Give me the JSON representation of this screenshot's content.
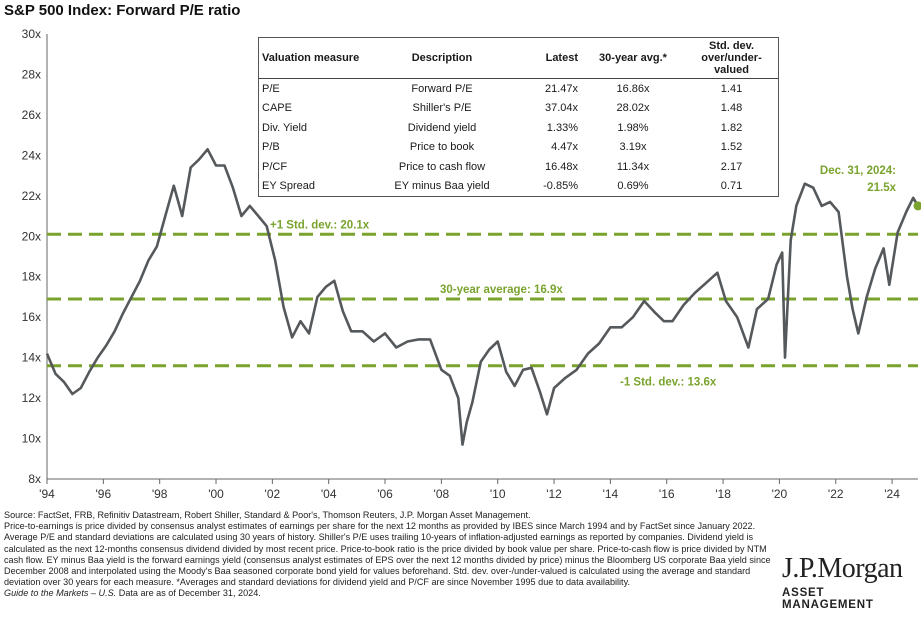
{
  "title": "S&P 500 Index: Forward P/E ratio",
  "colors": {
    "line": "#55595c",
    "accent": "#7aa32e",
    "grid": "#b3b3b3"
  },
  "chart_data": {
    "type": "line",
    "title": "S&P 500 Index: Forward P/E ratio",
    "xlabel": "",
    "ylabel": "",
    "xlim": [
      1994,
      2024.92
    ],
    "ylim": [
      8,
      30
    ],
    "y_ticks": [
      8,
      10,
      12,
      14,
      16,
      18,
      20,
      22,
      24,
      26,
      28,
      30
    ],
    "y_tick_labels": [
      "8x",
      "10x",
      "12x",
      "14x",
      "16x",
      "18x",
      "20x",
      "22x",
      "24x",
      "26x",
      "28x",
      "30x"
    ],
    "x_ticks": [
      1994,
      1996,
      1998,
      2000,
      2002,
      2004,
      2006,
      2008,
      2010,
      2012,
      2014,
      2016,
      2018,
      2020,
      2022,
      2024
    ],
    "x_tick_labels": [
      "'94",
      "'96",
      "'98",
      "'00",
      "'02",
      "'04",
      "'06",
      "'08",
      "'10",
      "'12",
      "'14",
      "'16",
      "'18",
      "'20",
      "'22",
      "'24"
    ],
    "grid": "none",
    "series": [
      {
        "x": [
          1994.0,
          1994.3,
          1994.6,
          1994.9,
          1995.2,
          1995.5,
          1995.8,
          1996.1,
          1996.4,
          1996.7,
          1997.0,
          1997.3,
          1997.6,
          1997.9,
          1998.2,
          1998.5,
          1998.8,
          1999.1,
          1999.4,
          1999.7,
          2000.0,
          2000.3,
          2000.6,
          2000.9,
          2001.2,
          2001.5,
          2001.8,
          2002.1,
          2002.4,
          2002.7,
          2003.0,
          2003.3,
          2003.6,
          2003.9,
          2004.2,
          2004.5,
          2004.8,
          2005.2,
          2005.6,
          2006.0,
          2006.4,
          2006.8,
          2007.2,
          2007.6,
          2008.0,
          2008.3,
          2008.6,
          2008.75,
          2008.9,
          2009.1,
          2009.4,
          2009.7,
          2010.0,
          2010.3,
          2010.6,
          2010.9,
          2011.2,
          2011.5,
          2011.75,
          2012.0,
          2012.4,
          2012.8,
          2013.2,
          2013.6,
          2014.0,
          2014.4,
          2014.8,
          2015.2,
          2015.6,
          2015.9,
          2016.2,
          2016.6,
          2017.0,
          2017.4,
          2017.8,
          2018.1,
          2018.5,
          2018.9,
          2019.2,
          2019.6,
          2019.9,
          2020.1,
          2020.2,
          2020.4,
          2020.6,
          2020.9,
          2021.2,
          2021.5,
          2021.8,
          2022.1,
          2022.4,
          2022.6,
          2022.8,
          2023.1,
          2023.4,
          2023.7,
          2023.9,
          2024.2,
          2024.5,
          2024.75,
          2024.92
        ],
        "values": [
          14.2,
          13.2,
          12.8,
          12.2,
          12.5,
          13.3,
          14.0,
          14.6,
          15.3,
          16.2,
          17.0,
          17.8,
          18.8,
          19.5,
          21.0,
          22.5,
          21.0,
          23.4,
          23.8,
          24.3,
          23.5,
          23.5,
          22.4,
          21.0,
          21.5,
          21.0,
          20.5,
          18.8,
          16.5,
          15.0,
          15.8,
          15.2,
          17.0,
          17.5,
          17.8,
          16.3,
          15.3,
          15.3,
          14.8,
          15.2,
          14.5,
          14.8,
          14.9,
          14.9,
          13.4,
          13.1,
          12.0,
          9.7,
          10.8,
          11.8,
          13.8,
          14.4,
          14.8,
          13.3,
          12.6,
          13.4,
          13.5,
          12.3,
          11.2,
          12.5,
          13.0,
          13.4,
          14.2,
          14.7,
          15.5,
          15.5,
          16.0,
          16.8,
          16.2,
          15.8,
          15.8,
          16.6,
          17.2,
          17.7,
          18.2,
          16.8,
          16.0,
          14.5,
          16.4,
          16.9,
          18.6,
          19.2,
          14.0,
          19.8,
          21.5,
          22.6,
          22.4,
          21.5,
          21.7,
          21.2,
          18.0,
          16.4,
          15.2,
          17.0,
          18.4,
          19.4,
          17.6,
          20.2,
          21.2,
          21.9,
          21.5
        ]
      }
    ],
    "reference_lines": [
      {
        "label": "+1 Std. dev.: 20.1x",
        "value": 20.1
      },
      {
        "label": "30-year average: 16.9x",
        "value": 16.9
      },
      {
        "label": "-1 Std. dev.: 13.6x",
        "value": 13.6
      }
    ],
    "annotation": {
      "line1": "Dec. 31, 2024:",
      "line2": "21.5x",
      "x": 2024.92,
      "y": 21.5
    }
  },
  "table": {
    "headers": [
      "Valuation measure",
      "Description",
      "Latest",
      "30-year avg.*",
      "Std. dev. over/under-valued"
    ],
    "rows": [
      [
        "P/E",
        "Forward P/E",
        "21.47x",
        "16.86x",
        "1.41"
      ],
      [
        "CAPE",
        "Shiller's P/E",
        "37.04x",
        "28.02x",
        "1.48"
      ],
      [
        "Div. Yield",
        "Dividend yield",
        "1.33%",
        "1.98%",
        "1.82"
      ],
      [
        "P/B",
        "Price to book",
        "4.47x",
        "3.19x",
        "1.52"
      ],
      [
        "P/CF",
        "Price to cash flow",
        "16.48x",
        "11.34x",
        "2.17"
      ],
      [
        "EY Spread",
        "EY minus Baa yield",
        "-0.85%",
        "0.69%",
        "0.71"
      ]
    ]
  },
  "footer": {
    "source": "Source: FactSet, FRB, Refinitiv Datastream, Robert Shiller, Standard & Poor's, Thomson Reuters, J.P. Morgan Asset Management.",
    "notes": "Price-to-earnings is price divided by consensus analyst estimates of earnings per share for the next 12 months as provided by IBES since March 1994 and by FactSet since January 2022. Average P/E and standard deviations are calculated using 30 years of history. Shiller's P/E uses trailing 10-years of inflation-adjusted earnings as reported by companies. Dividend yield is calculated as the next 12-months consensus dividend divided by most recent price. Price-to-book ratio is the price divided by book value per share. Price-to-cash flow is price divided by NTM cash flow. EY minus Baa yield is the forward earnings yield (consensus analyst estimates of EPS over the next 12 months divided by price) minus the Bloomberg US corporate Baa yield since December 2008 and interpolated using the Moody's Baa seasoned corporate bond yield for values beforehand. Std. dev. over-/under-valued is calculated using the average and standard deviation over 30 years for each measure. *Averages and standard deviations for dividend yield and P/CF are since November 1995 due to data availability.",
    "guide_italic": "Guide to the Markets – U.S.",
    "guide_rest": " Data are as of December 31, 2024."
  },
  "logo": {
    "name": "J.P.Morgan",
    "tagline": "ASSET MANAGEMENT"
  }
}
